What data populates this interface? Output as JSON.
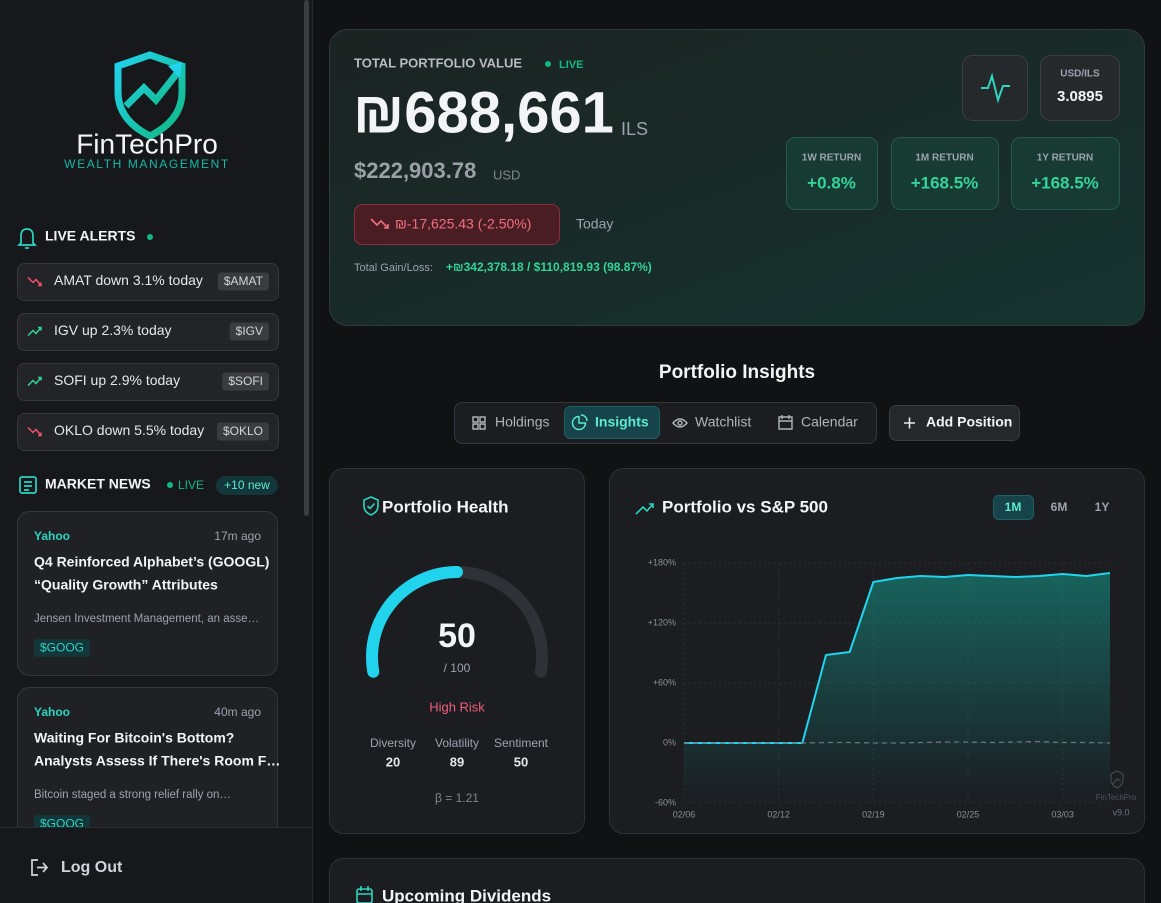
{
  "sidebar": {
    "brand": {
      "name": "FinTechPro",
      "tagline": "WEALTH MANAGEMENT"
    },
    "alerts": {
      "title": "LIVE ALERTS",
      "items": [
        {
          "text": "AMAT down 3.1% today",
          "ticker": "$AMAT",
          "trend": "down"
        },
        {
          "text": "IGV up 2.3% today",
          "ticker": "$IGV",
          "trend": "up"
        },
        {
          "text": "SOFI up 2.9% today",
          "ticker": "$SOFI",
          "trend": "up"
        },
        {
          "text": "OKLO down 5.5% today",
          "ticker": "$OKLO",
          "trend": "down"
        }
      ]
    },
    "news": {
      "title": "MARKET NEWS",
      "live": "LIVE",
      "badge": "+10 new",
      "items": [
        {
          "source": "Yahoo",
          "time": "17m ago",
          "headline": [
            "Q4 Reinforced Alphabet’s (GOOGL)",
            "“Quality Growth” Attributes"
          ],
          "summary": "Jensen Investment Management, an asse…",
          "ticker": "$GOOG"
        },
        {
          "source": "Yahoo",
          "time": "40m ago",
          "headline": [
            "Waiting For Bitcoin's Bottom?",
            "Analysts Assess If There's Room F…"
          ],
          "summary": "Bitcoin staged a strong relief rally on…",
          "ticker": "$GOOG"
        }
      ]
    },
    "logout": "Log Out"
  },
  "portfolio": {
    "label": "TOTAL PORTFOLIO VALUE",
    "live": "LIVE",
    "value": "₪688,661",
    "currency": "ILS",
    "usd": "$222,903.78",
    "usd_label": "USD",
    "change": "₪-17,625.43 (-2.50%)",
    "change_period": "Today",
    "gain_label": "Total Gain/Loss:",
    "gain": "+₪342,378.18 / $110,819.93 (98.87%)",
    "fx_label": "USD/ILS",
    "fx": "3.0895",
    "returns": [
      {
        "label": "1W RETURN",
        "value": "+0.8%"
      },
      {
        "label": "1M RETURN",
        "value": "+168.5%"
      },
      {
        "label": "1Y RETURN",
        "value": "+168.5%"
      }
    ]
  },
  "insights": {
    "title": "Portfolio Insights",
    "tabs": [
      "Holdings",
      "Insights",
      "Watchlist",
      "Calendar"
    ],
    "active_tab": 1,
    "add_button": "Add Position"
  },
  "health": {
    "title": "Portfolio Health",
    "score": 50,
    "max": {
      "value": 100,
      "label": "/ 100"
    },
    "status": "High Risk",
    "metrics": [
      {
        "label": "Diversity",
        "value": 20
      },
      {
        "label": "Volatility",
        "value": 89
      },
      {
        "label": "Sentiment",
        "value": 50
      }
    ],
    "beta": "β = 1.21"
  },
  "chart_data": {
    "type": "line",
    "title": "Portfolio vs S&P 500",
    "periods": [
      "1M",
      "6M",
      "1Y"
    ],
    "active_period": 0,
    "categories": [
      "02/06",
      null,
      null,
      null,
      "02/12",
      null,
      null,
      null,
      "02/19",
      null,
      null,
      null,
      "02/25",
      null,
      null,
      null,
      "03/03",
      null,
      null
    ],
    "series": [
      {
        "color": "#22d3ee",
        "values": [
          0,
          0,
          0,
          0,
          0,
          0,
          88,
          91,
          161,
          165,
          167,
          166,
          168,
          167,
          166,
          167,
          169,
          167,
          170
        ]
      },
      {
        "color": "#6b7280",
        "dashed": true,
        "values": [
          0,
          0,
          0,
          0,
          0,
          0,
          0.5,
          0.5,
          0,
          0,
          0.5,
          1,
          1,
          0.5,
          1,
          1.5,
          0.5,
          0.5,
          0
        ]
      }
    ],
    "ylim": [
      -60,
      180
    ],
    "yticks": [
      {
        "value": -60,
        "label": "-60%"
      },
      {
        "value": 0,
        "label": "0%"
      },
      {
        "value": 60,
        "label": "+60%"
      },
      {
        "value": 120,
        "label": "+120%"
      },
      {
        "value": 180,
        "label": "+180%"
      }
    ],
    "grid": true,
    "watermark": "FinTechPro",
    "version": "v9.0"
  },
  "dividends": {
    "title": "Upcoming Dividends"
  }
}
